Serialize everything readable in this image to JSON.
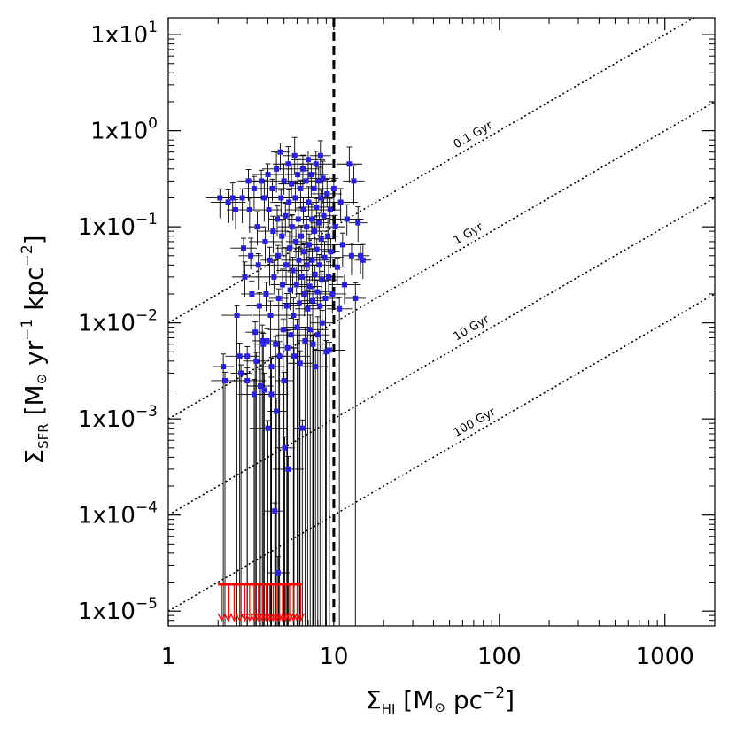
{
  "chart_data": {
    "type": "scatter",
    "x_scale": "log",
    "y_scale": "log",
    "xlim": [
      1,
      2000
    ],
    "ylim": [
      7e-06,
      15
    ],
    "x_ticks": [
      {
        "value": 1,
        "label": "1"
      },
      {
        "value": 10,
        "label": "10"
      },
      {
        "value": 100,
        "label": "100"
      },
      {
        "value": 1000,
        "label": "1000"
      }
    ],
    "y_ticks": [
      {
        "value": 1e-05,
        "mantissa": "1x10",
        "exponent": "−5"
      },
      {
        "value": 0.0001,
        "mantissa": "1x10",
        "exponent": "−4"
      },
      {
        "value": 0.001,
        "mantissa": "1x10",
        "exponent": "−3"
      },
      {
        "value": 0.01,
        "mantissa": "1x10",
        "exponent": "−2"
      },
      {
        "value": 0.1,
        "mantissa": "1x10",
        "exponent": "−1"
      },
      {
        "value": 1,
        "mantissa": "1x10",
        "exponent": "0"
      },
      {
        "value": 10,
        "mantissa": "1x10",
        "exponent": "1"
      }
    ],
    "xlabel": {
      "sym": "Σ",
      "sub": "HI",
      "unit": "[M",
      "sun": "⊙",
      "rest": " pc",
      "exp": "−2",
      "close": "]"
    },
    "ylabel": {
      "sym": "Σ",
      "sub": "SFR",
      "unit": "[M",
      "sun": "⊙",
      "rest": " yr",
      "exp1": "−1",
      "rest2": " kpc",
      "exp2": "−2",
      "close": "]"
    },
    "vertical_line": {
      "x": 10,
      "style": "dashed"
    },
    "depletion_lines": [
      {
        "label": "0.1 Gyr",
        "y_at_x1": 0.01
      },
      {
        "label": "1 Gyr",
        "y_at_x1": 0.001
      },
      {
        "label": "10 Gyr",
        "y_at_x1": 0.0001
      },
      {
        "label": "100 Gyr",
        "y_at_x1": 1e-05
      }
    ],
    "series": [
      {
        "marker": "square",
        "color": "#2b1fe0",
        "errorbar_color": "#000000",
        "points": [
          [
            2.05,
            0.2
          ],
          [
            2.15,
            0.0035
          ],
          [
            2.2,
            0.0025
          ],
          [
            2.3,
            0.18
          ],
          [
            2.45,
            0.2
          ],
          [
            2.55,
            0.15
          ],
          [
            2.6,
            0.012
          ],
          [
            2.7,
            0.0045
          ],
          [
            2.75,
            0.003
          ],
          [
            2.8,
            0.2
          ],
          [
            2.85,
            0.06
          ],
          [
            2.9,
            0.03
          ],
          [
            3.0,
            0.0045
          ],
          [
            3.0,
            0.0025
          ],
          [
            3.05,
            0.3
          ],
          [
            3.1,
            0.15
          ],
          [
            3.15,
            0.05
          ],
          [
            3.2,
            0.02
          ],
          [
            3.3,
            0.25
          ],
          [
            3.3,
            0.0018
          ],
          [
            3.35,
            0.008
          ],
          [
            3.4,
            0.004
          ],
          [
            3.45,
            0.1
          ],
          [
            3.5,
            0.04
          ],
          [
            3.55,
            0.015
          ],
          [
            3.6,
            0.0022
          ],
          [
            3.65,
            0.3
          ],
          [
            3.7,
            0.0065
          ],
          [
            3.75,
            0.006
          ],
          [
            3.8,
            0.2
          ],
          [
            3.8,
            0.002
          ],
          [
            3.85,
            0.07
          ],
          [
            3.9,
            0.02
          ],
          [
            3.95,
            0.0065
          ],
          [
            4.0,
            0.35
          ],
          [
            4.0,
            0.0008
          ],
          [
            4.05,
            0.15
          ],
          [
            4.1,
            0.045
          ],
          [
            4.15,
            0.012
          ],
          [
            4.2,
            0.0035
          ],
          [
            4.2,
            0.0018
          ],
          [
            4.25,
            0.25
          ],
          [
            4.3,
            0.09
          ],
          [
            4.35,
            0.03
          ],
          [
            4.4,
            0.00011
          ],
          [
            4.45,
            0.006
          ],
          [
            4.5,
            0.4
          ],
          [
            4.5,
            0.0012
          ],
          [
            4.55,
            0.12
          ],
          [
            4.6,
            0.05
          ],
          [
            4.6,
            2.5e-05
          ],
          [
            4.65,
            0.018
          ],
          [
            4.7,
            0.0045
          ],
          [
            4.75,
            0.6
          ],
          [
            4.8,
            0.2
          ],
          [
            4.85,
            0.08
          ],
          [
            4.9,
            0.025
          ],
          [
            4.95,
            0.0085
          ],
          [
            5.0,
            0.3
          ],
          [
            5.0,
            0.0025
          ],
          [
            5.05,
            0.0005
          ],
          [
            5.1,
            0.13
          ],
          [
            5.15,
            0.04
          ],
          [
            5.2,
            0.015
          ],
          [
            5.25,
            0.0055
          ],
          [
            5.3,
            0.45
          ],
          [
            5.3,
            0.0003
          ],
          [
            5.35,
            0.18
          ],
          [
            5.4,
            0.06
          ],
          [
            5.45,
            0.022
          ],
          [
            5.5,
            0.0075
          ],
          [
            5.55,
            0.28
          ],
          [
            5.6,
            0.1
          ],
          [
            5.65,
            0.035
          ],
          [
            5.7,
            0.012
          ],
          [
            5.75,
            0.0045
          ],
          [
            5.8,
            0.55
          ],
          [
            5.85,
            0.2
          ],
          [
            5.9,
            0.07
          ],
          [
            5.95,
            0.025
          ],
          [
            6.0,
            0.009
          ],
          [
            6.05,
            0.35
          ],
          [
            6.1,
            0.12
          ],
          [
            6.15,
            0.045
          ],
          [
            6.2,
            0.016
          ],
          [
            6.25,
            0.0038
          ],
          [
            6.3,
            0.25
          ],
          [
            6.35,
            0.08
          ],
          [
            6.4,
            0.03
          ],
          [
            6.45,
            0.0008
          ],
          [
            6.5,
            0.4
          ],
          [
            6.55,
            0.15
          ],
          [
            6.6,
            0.055
          ],
          [
            6.65,
            0.02
          ],
          [
            6.7,
            0.0065
          ],
          [
            6.8,
            0.3
          ],
          [
            6.85,
            0.1
          ],
          [
            6.9,
            0.04
          ],
          [
            6.95,
            0.014
          ],
          [
            7.0,
            0.5
          ],
          [
            7.05,
            0.18
          ],
          [
            7.1,
            0.065
          ],
          [
            7.15,
            0.024
          ],
          [
            7.2,
            0.0085
          ],
          [
            7.3,
            0.35
          ],
          [
            7.35,
            0.12
          ],
          [
            7.4,
            0.045
          ],
          [
            7.45,
            0.017
          ],
          [
            7.5,
            0.006
          ],
          [
            7.6,
            0.25
          ],
          [
            7.65,
            0.09
          ],
          [
            7.7,
            0.032
          ],
          [
            7.75,
            0.0035
          ],
          [
            7.8,
            0.45
          ],
          [
            7.85,
            0.16
          ],
          [
            7.9,
            0.058
          ],
          [
            7.95,
            0.021
          ],
          [
            8.0,
            0.0075
          ],
          [
            8.1,
            0.3
          ],
          [
            8.15,
            0.11
          ],
          [
            8.2,
            0.04
          ],
          [
            8.25,
            0.015
          ],
          [
            8.3,
            0.55
          ],
          [
            8.35,
            0.2
          ],
          [
            8.4,
            0.075
          ],
          [
            8.45,
            0.028
          ],
          [
            8.5,
            0.01
          ],
          [
            8.6,
            0.32
          ],
          [
            8.7,
            0.13
          ],
          [
            8.8,
            0.048
          ],
          [
            8.9,
            0.018
          ],
          [
            9.0,
            0.005
          ],
          [
            9.1,
            0.22
          ],
          [
            9.2,
            0.08
          ],
          [
            9.3,
            0.03
          ],
          [
            9.4,
            0.0052
          ],
          [
            9.5,
            0.15
          ],
          [
            9.6,
            0.055
          ],
          [
            9.8,
            0.02
          ],
          [
            10.0,
            0.25
          ],
          [
            10.2,
            0.1
          ],
          [
            10.5,
            0.038
          ],
          [
            10.8,
            0.014
          ],
          [
            11.0,
            0.18
          ],
          [
            11.3,
            0.065
          ],
          [
            11.6,
            0.025
          ],
          [
            12.0,
            0.12
          ],
          [
            12.4,
            0.45
          ],
          [
            12.8,
            0.05
          ],
          [
            13.2,
            0.3
          ],
          [
            13.5,
            0.018
          ],
          [
            14.0,
            0.11
          ],
          [
            14.5,
            0.05
          ],
          [
            15.0,
            0.045
          ]
        ]
      },
      {
        "marker": "upper-limit",
        "color": "#ff0000",
        "y": 1.9e-05,
        "x": [
          2.1,
          2.3,
          2.5,
          2.7,
          2.9,
          3.1,
          3.3,
          3.5,
          3.7,
          3.9,
          4.1,
          4.3,
          4.5,
          4.7,
          4.9,
          5.1,
          5.4,
          5.7,
          6.0,
          6.3
        ]
      }
    ]
  }
}
